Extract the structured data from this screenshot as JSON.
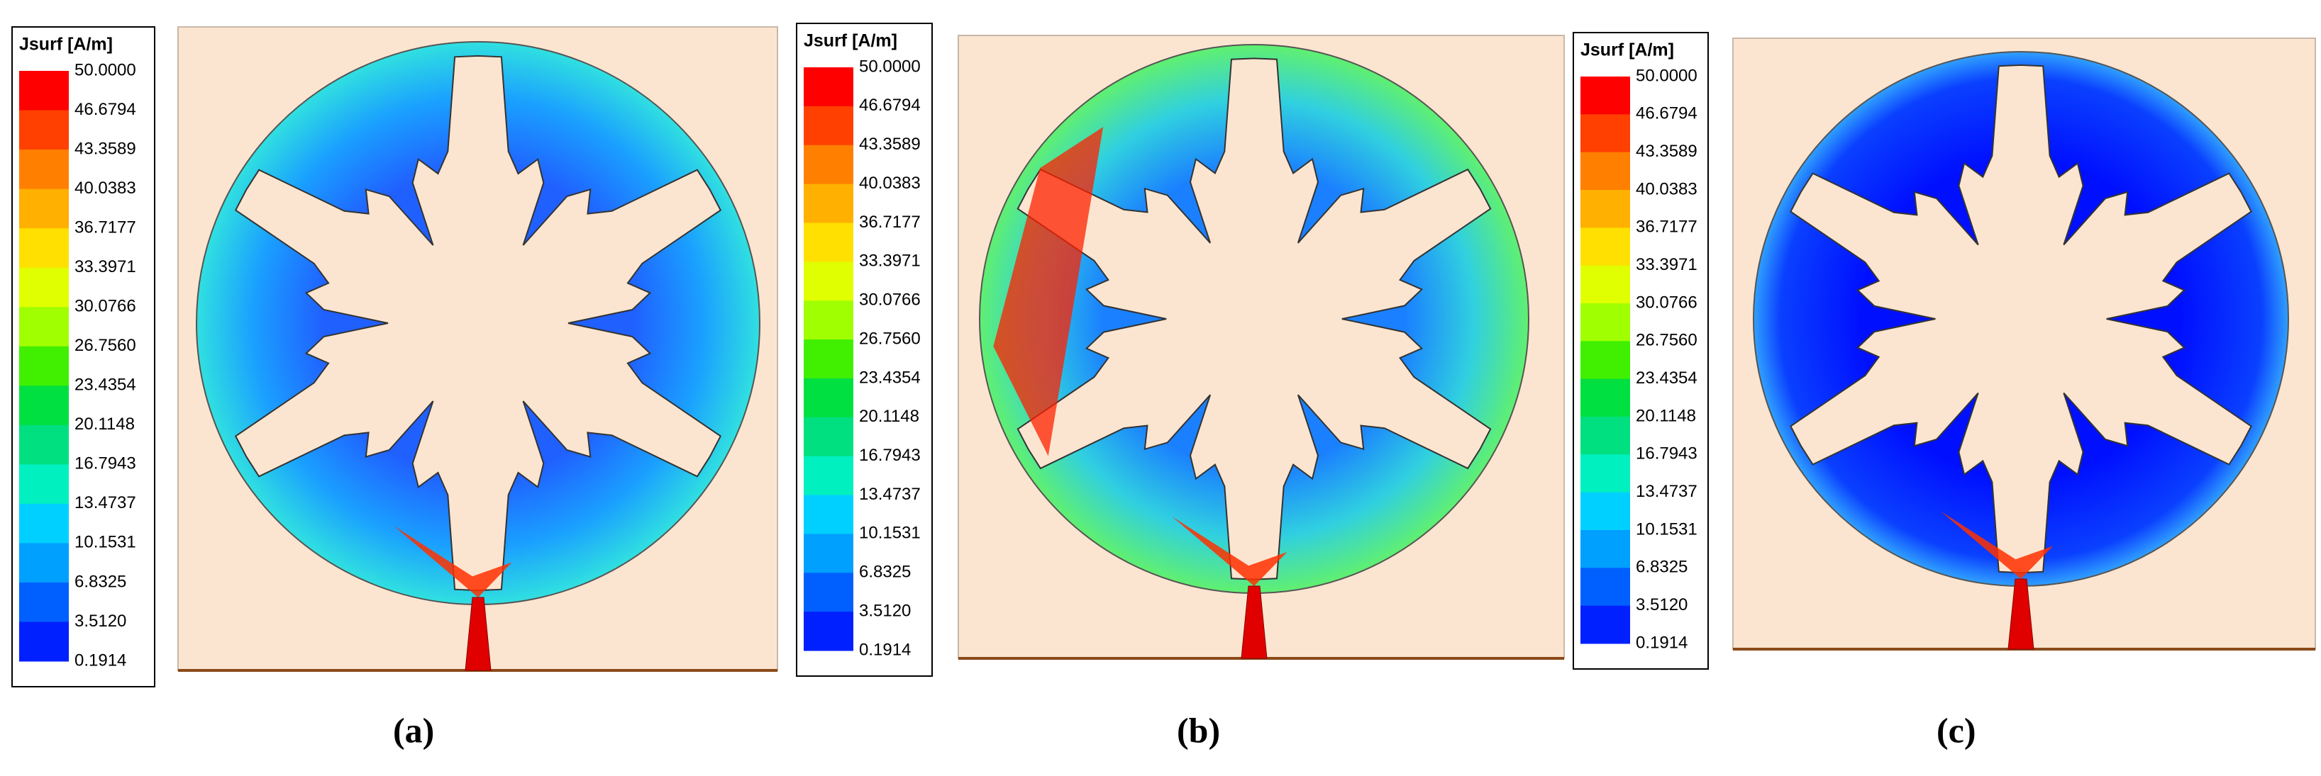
{
  "panels": [
    {
      "label": "(a)",
      "legend": {
        "title": "Jsurf [A/m]",
        "values": [
          "50.0000",
          "46.6794",
          "43.3589",
          "40.0383",
          "36.7177",
          "33.3971",
          "30.0766",
          "26.7560",
          "23.4354",
          "20.1148",
          "16.7943",
          "13.4737",
          "10.1531",
          "6.8325",
          "3.5120",
          "0.1914"
        ]
      }
    },
    {
      "label": "(b)",
      "legend": {
        "title": "Jsurf [A/m]",
        "values": [
          "50.0000",
          "46.6794",
          "43.3589",
          "40.0383",
          "36.7177",
          "33.3971",
          "30.0766",
          "26.7560",
          "23.4354",
          "20.1148",
          "16.7943",
          "13.4737",
          "10.1531",
          "6.8325",
          "3.5120",
          "0.1914"
        ]
      }
    },
    {
      "label": "(c)",
      "legend": {
        "title": "Jsurf [A/m]",
        "values": [
          "50.0000",
          "46.6794",
          "43.3589",
          "40.0383",
          "36.7177",
          "33.3971",
          "30.0766",
          "26.7560",
          "23.4354",
          "20.1148",
          "16.7943",
          "13.4737",
          "10.1531",
          "6.8325",
          "3.5120",
          "0.1914"
        ]
      }
    }
  ]
}
